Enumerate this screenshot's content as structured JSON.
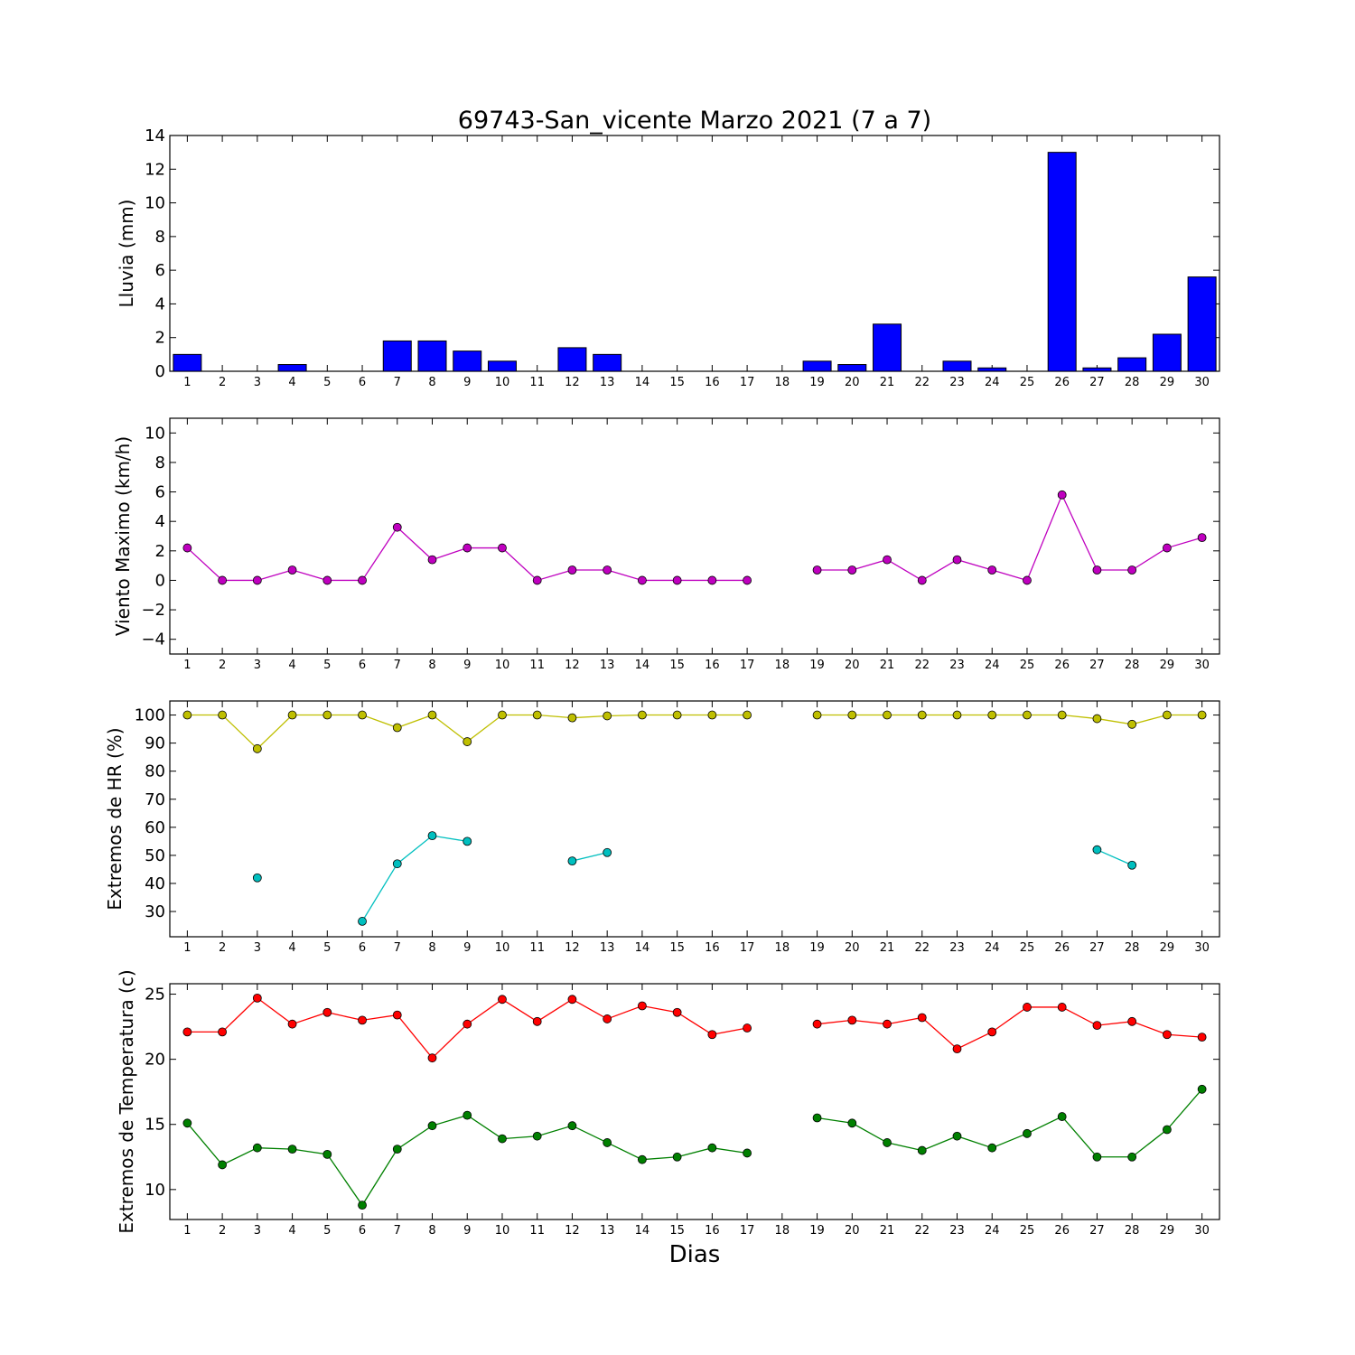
{
  "title": "69743-San_vicente Marzo 2021  (7 a 7)",
  "xlabel": "Dias",
  "chart_data": [
    {
      "type": "bar",
      "ylabel": "Lluvia (mm)",
      "ylim": [
        0,
        14
      ],
      "yticks": [
        0,
        2,
        4,
        6,
        8,
        10,
        12,
        14
      ],
      "x": [
        1,
        2,
        3,
        4,
        5,
        6,
        7,
        8,
        9,
        10,
        11,
        12,
        13,
        14,
        15,
        16,
        17,
        18,
        19,
        20,
        21,
        22,
        23,
        24,
        25,
        26,
        27,
        28,
        29,
        30
      ],
      "xlim": [
        0.5,
        30.5
      ],
      "series": [
        {
          "color": "#0000ff",
          "values": [
            1.0,
            0,
            0,
            0.4,
            0,
            0,
            1.8,
            1.8,
            1.2,
            0.6,
            0,
            1.4,
            1.0,
            0,
            0,
            0,
            0,
            0,
            0.6,
            0.4,
            2.8,
            0,
            0.6,
            0.2,
            0,
            13.0,
            0.2,
            0.8,
            2.2,
            5.6
          ]
        }
      ]
    },
    {
      "type": "line",
      "ylabel": "Viento Maximo (km/h)",
      "ylim": [
        -5,
        11
      ],
      "yticks": [
        -4,
        -2,
        0,
        2,
        4,
        6,
        8,
        10
      ],
      "x": [
        1,
        2,
        3,
        4,
        5,
        6,
        7,
        8,
        9,
        10,
        11,
        12,
        13,
        14,
        15,
        16,
        17,
        18,
        19,
        20,
        21,
        22,
        23,
        24,
        25,
        26,
        27,
        28,
        29,
        30
      ],
      "xlim": [
        0.5,
        30.5
      ],
      "series": [
        {
          "color": "#bf00bf",
          "values": [
            2.2,
            0,
            0,
            0.7,
            0,
            0,
            3.6,
            1.4,
            2.2,
            2.2,
            0,
            0.7,
            0.7,
            0,
            0,
            0,
            0,
            null,
            0.7,
            0.7,
            1.4,
            0,
            1.4,
            0.7,
            0,
            5.8,
            0.7,
            0.7,
            2.2,
            2.9
          ]
        }
      ]
    },
    {
      "type": "line",
      "ylabel": "Extremos de HR (%)",
      "ylim": [
        21,
        105
      ],
      "yticks": [
        30,
        40,
        50,
        60,
        70,
        80,
        90,
        100
      ],
      "x": [
        1,
        2,
        3,
        4,
        5,
        6,
        7,
        8,
        9,
        10,
        11,
        12,
        13,
        14,
        15,
        16,
        17,
        18,
        19,
        20,
        21,
        22,
        23,
        24,
        25,
        26,
        27,
        28,
        29,
        30
      ],
      "xlim": [
        0.5,
        30.5
      ],
      "series": [
        {
          "color": "#bfbf00",
          "values": [
            100,
            100,
            88,
            100,
            100,
            100,
            95.5,
            100,
            90.5,
            100,
            100,
            99,
            99.7,
            100,
            100,
            100,
            100,
            null,
            100,
            100,
            100,
            100,
            100,
            100,
            100,
            100,
            98.7,
            96.7,
            100,
            100
          ]
        },
        {
          "color": "#00bfbf",
          "values": [
            null,
            null,
            42,
            null,
            null,
            26.5,
            47,
            57,
            55,
            null,
            null,
            48,
            51,
            null,
            null,
            null,
            null,
            null,
            null,
            null,
            null,
            null,
            null,
            null,
            null,
            null,
            52,
            46.5,
            null,
            null
          ]
        }
      ]
    },
    {
      "type": "line",
      "ylabel": "Extremos de Temperatura (c)",
      "ylim": [
        7.7,
        25.8
      ],
      "yticks": [
        10,
        15,
        20,
        25
      ],
      "x": [
        1,
        2,
        3,
        4,
        5,
        6,
        7,
        8,
        9,
        10,
        11,
        12,
        13,
        14,
        15,
        16,
        17,
        18,
        19,
        20,
        21,
        22,
        23,
        24,
        25,
        26,
        27,
        28,
        29,
        30
      ],
      "xlim": [
        0.5,
        30.5
      ],
      "series": [
        {
          "color": "#ff0000",
          "values": [
            22.1,
            22.1,
            24.7,
            22.7,
            23.6,
            23.0,
            23.4,
            20.1,
            22.7,
            24.6,
            22.9,
            24.6,
            23.1,
            24.1,
            23.6,
            21.9,
            22.4,
            null,
            22.7,
            23.0,
            22.7,
            23.2,
            20.8,
            22.1,
            24.0,
            24.0,
            22.6,
            22.9,
            21.9,
            21.7
          ]
        },
        {
          "color": "#008000",
          "values": [
            15.1,
            11.9,
            13.2,
            13.1,
            12.7,
            8.8,
            13.1,
            14.9,
            15.7,
            13.9,
            14.1,
            14.9,
            13.6,
            12.3,
            12.5,
            13.2,
            12.8,
            null,
            15.5,
            15.1,
            13.6,
            13.0,
            14.1,
            13.2,
            14.3,
            15.6,
            12.5,
            12.5,
            14.6,
            17.7
          ]
        }
      ]
    }
  ]
}
